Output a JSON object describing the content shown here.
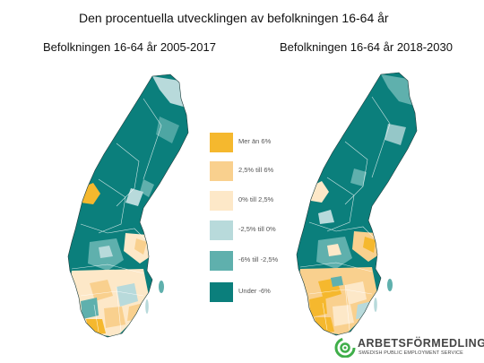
{
  "title": "Den procentuella utvecklingen av befolkningen 16-64 år",
  "maps": {
    "left": {
      "label": "Befolkningen 16-64 år 2005-2017"
    },
    "right": {
      "label": "Befolkningen 16-64 år 2018-2030"
    }
  },
  "legend": [
    {
      "label": "Mer än 6%",
      "color": "#f5b82e"
    },
    {
      "label": "2,5% till 6%",
      "color": "#f9d08e"
    },
    {
      "label": "0% till 2,5%",
      "color": "#fde8c8"
    },
    {
      "label": "-2,5% till 0%",
      "color": "#b8dadb"
    },
    {
      "label": "-6% till -2,5%",
      "color": "#5fb0ad"
    },
    {
      "label": "Under -6%",
      "color": "#0b7f7c"
    }
  ],
  "logo": {
    "name": "ARBETSFÖRMEDLINGEN",
    "tagline": "SWEDISH PUBLIC EMPLOYMENT SERVICE",
    "color": "#3fae49"
  }
}
